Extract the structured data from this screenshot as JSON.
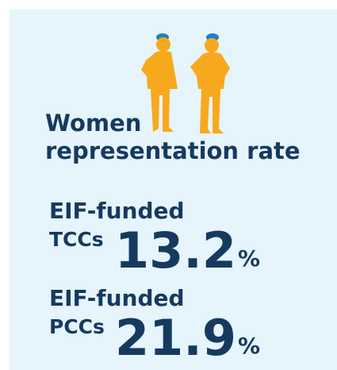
{
  "title": [
    "Women",
    "representation rate"
  ],
  "stats": [
    {
      "label": [
        "EIF-funded",
        "TCCs"
      ],
      "value": 13.2,
      "unit": "%"
    },
    {
      "label": [
        "EIF-funded",
        "PCCs"
      ],
      "value": 21.9,
      "unit": "%"
    }
  ]
}
